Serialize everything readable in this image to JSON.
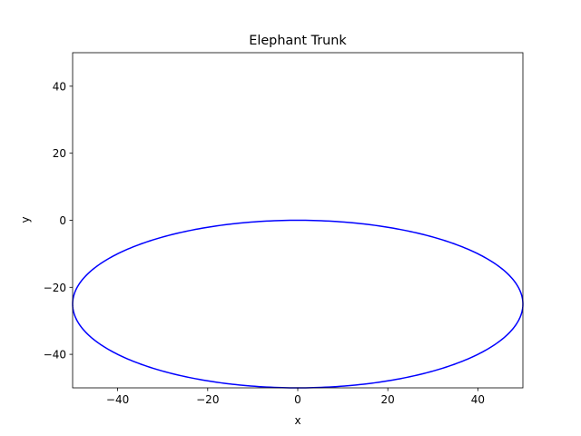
{
  "chart_data": {
    "type": "line",
    "title": "Elephant Trunk",
    "xlabel": "x",
    "ylabel": "y",
    "xlim": [
      -50,
      50
    ],
    "ylim": [
      -50,
      50
    ],
    "xticks": [
      -40,
      -20,
      0,
      20,
      40
    ],
    "yticks": [
      -40,
      -20,
      0,
      20,
      40
    ],
    "grid": false,
    "series": [
      {
        "shape": "ellipse",
        "center": [
          0,
          -25
        ],
        "x_radius": 50,
        "y_radius": 25,
        "color": "#0000ff"
      }
    ]
  }
}
